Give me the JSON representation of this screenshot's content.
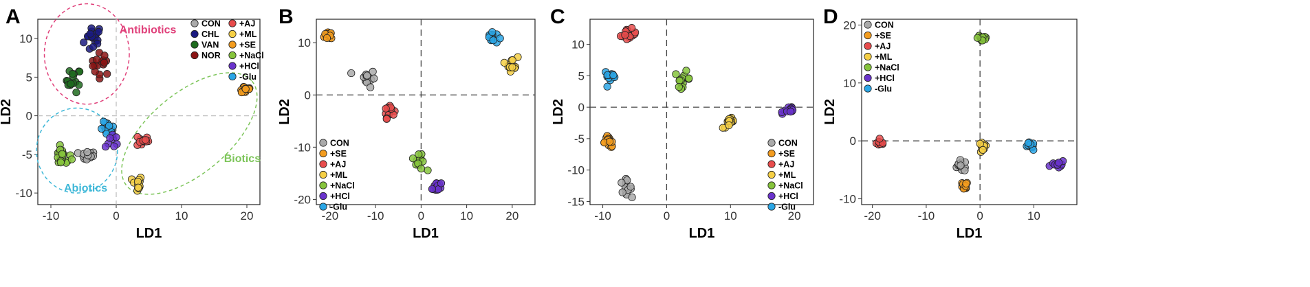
{
  "colors": {
    "CON": "#aaaaaa",
    "CHL": "#1a1a80",
    "VAN": "#1e6b1e",
    "NOR": "#8b1515",
    "+AJ": "#e84c4c",
    "+ML": "#f5cf45",
    "+SE": "#f39c1f",
    "+NaCl": "#86c43c",
    "+HCl": "#6a33cc",
    "-Glu": "#2aa6e6"
  },
  "chart_data": [
    {
      "panel": "A",
      "type": "scatter",
      "xlabel": "LD1",
      "ylabel": "LD2",
      "xlim": [
        -12,
        22
      ],
      "ylim": [
        -11.5,
        12.5
      ],
      "xticks": [
        -10,
        0,
        10,
        20
      ],
      "yticks": [
        10,
        5,
        0,
        -5,
        -10
      ],
      "ref_lines": {
        "x": 0,
        "y": 0,
        "style": "light-gray-dashed"
      },
      "legend_position": "top-right",
      "legend": [
        [
          "CON",
          "CHL",
          "VAN",
          "NOR"
        ],
        [
          "+AJ",
          "+ML",
          "+SE",
          "+NaCl",
          "+HCl",
          "-Glu"
        ]
      ],
      "clusters": [
        {
          "name": "CHL",
          "cx": -3.5,
          "cy": 10,
          "sx": 1.2,
          "sy": 1.6,
          "n": 18
        },
        {
          "name": "NOR",
          "cx": -2.3,
          "cy": 6.7,
          "sx": 1.3,
          "sy": 1.2,
          "n": 16
        },
        {
          "name": "VAN",
          "cx": -6.5,
          "cy": 4.6,
          "sx": 0.9,
          "sy": 1.3,
          "n": 16
        },
        {
          "name": "CON",
          "cx": -4.5,
          "cy": -5.2,
          "sx": 1.1,
          "sy": 0.5,
          "n": 16
        },
        {
          "name": "+NaCl",
          "cx": -8.2,
          "cy": -5.3,
          "sx": 1.1,
          "sy": 1.0,
          "n": 18
        },
        {
          "name": "-Glu",
          "cx": -1.3,
          "cy": -1.8,
          "sx": 0.9,
          "sy": 0.8,
          "n": 16
        },
        {
          "name": "+HCl",
          "cx": -0.6,
          "cy": -3.2,
          "sx": 0.9,
          "sy": 0.9,
          "n": 8
        },
        {
          "name": "+AJ",
          "cx": 4.0,
          "cy": -3.2,
          "sx": 0.8,
          "sy": 0.7,
          "n": 14
        },
        {
          "name": "+ML",
          "cx": 3.2,
          "cy": -8.8,
          "sx": 0.6,
          "sy": 0.9,
          "n": 14
        },
        {
          "name": "+SE",
          "cx": 19.7,
          "cy": 3.4,
          "sx": 0.9,
          "sy": 0.5,
          "n": 14
        }
      ],
      "annotations": [
        {
          "text": "Antibiotics",
          "color": "#e0407a",
          "x": 0.5,
          "y": 10.7,
          "ellipse": {
            "cx": -4.5,
            "cy": 8,
            "rx": 6.5,
            "ry": 6.5
          }
        },
        {
          "text": "Abiotics",
          "color": "#3fb8d8",
          "x": -8,
          "y": -9.8,
          "ellipse": {
            "cx": -6,
            "cy": -4.5,
            "rx": 6.2,
            "ry": 5.5
          }
        },
        {
          "text": "Biotics",
          "color": "#7dc55a",
          "x": 16.5,
          "y": -6,
          "ellipse": {
            "cx": 11.2,
            "cy": -2.3,
            "rx": 12.5,
            "ry": 5.2,
            "angle": -40
          }
        }
      ]
    },
    {
      "panel": "B",
      "type": "scatter",
      "xlabel": "LD1",
      "ylabel": "LD2",
      "xlim": [
        -23,
        25
      ],
      "ylim": [
        -21,
        14.5
      ],
      "xticks": [
        -20,
        -10,
        0,
        10,
        20
      ],
      "yticks": [
        10,
        0,
        -10,
        -20
      ],
      "ref_lines": {
        "x": 0,
        "y": 0,
        "style": "dark-dashed"
      },
      "legend_position": "bottom-left",
      "legend": [
        [
          "CON",
          "+SE",
          "+AJ",
          "+ML",
          "+NaCl",
          "+HCl",
          "-Glu"
        ]
      ],
      "clusters": [
        {
          "name": "+SE",
          "cx": -20,
          "cy": 11.5,
          "sx": 1.0,
          "sy": 0.8,
          "n": 14
        },
        {
          "name": "CON",
          "cx": -12,
          "cy": 3.2,
          "sx": 1.6,
          "sy": 1.4,
          "n": 14
        },
        {
          "name": "+AJ",
          "cx": -7,
          "cy": -2.8,
          "sx": 0.9,
          "sy": 1.3,
          "n": 14
        },
        {
          "name": "+NaCl",
          "cx": -0.5,
          "cy": -13.0,
          "sx": 1.2,
          "sy": 1.2,
          "n": 14
        },
        {
          "name": "+HCl",
          "cx": 3.4,
          "cy": -17.5,
          "sx": 0.8,
          "sy": 1.2,
          "n": 14
        },
        {
          "name": "-Glu",
          "cx": 15.5,
          "cy": 11.0,
          "sx": 1.1,
          "sy": 1.0,
          "n": 14
        },
        {
          "name": "+ML",
          "cx": 20,
          "cy": 6.0,
          "sx": 1.0,
          "sy": 1.2,
          "n": 14
        }
      ]
    },
    {
      "panel": "C",
      "type": "scatter",
      "xlabel": "LD1",
      "ylabel": "LD2",
      "xlim": [
        -12,
        23
      ],
      "ylim": [
        -15.5,
        14
      ],
      "xticks": [
        -10,
        0,
        10,
        20
      ],
      "yticks": [
        10,
        5,
        0,
        -5,
        -10,
        -15
      ],
      "ref_lines": {
        "x": 0,
        "y": 0,
        "style": "dark-dashed"
      },
      "legend_position": "bottom-right",
      "legend": [
        [
          "CON",
          "+SE",
          "+AJ",
          "+ML",
          "+NaCl",
          "+HCl",
          "-Glu"
        ]
      ],
      "clusters": [
        {
          "name": "+AJ",
          "cx": -6,
          "cy": 11.5,
          "sx": 1.0,
          "sy": 0.8,
          "n": 14
        },
        {
          "name": "-Glu",
          "cx": -8.8,
          "cy": 4.9,
          "sx": 0.8,
          "sy": 0.8,
          "n": 14
        },
        {
          "name": "+NaCl",
          "cx": 2.5,
          "cy": 4.5,
          "sx": 1.0,
          "sy": 1.0,
          "n": 14
        },
        {
          "name": "+SE",
          "cx": -9,
          "cy": -5.5,
          "sx": 0.8,
          "sy": 0.8,
          "n": 14
        },
        {
          "name": "CON",
          "cx": -6.5,
          "cy": -12.8,
          "sx": 0.8,
          "sy": 1.0,
          "n": 14
        },
        {
          "name": "+ML",
          "cx": 10,
          "cy": -2.5,
          "sx": 1.0,
          "sy": 0.7,
          "n": 14
        },
        {
          "name": "+HCl",
          "cx": 19,
          "cy": -0.5,
          "sx": 1.0,
          "sy": 0.8,
          "n": 12
        }
      ]
    },
    {
      "panel": "D",
      "type": "scatter",
      "xlabel": "LD1",
      "ylabel": "LD2",
      "xlim": [
        -22,
        18
      ],
      "ylim": [
        -11,
        21
      ],
      "xticks": [
        -20,
        -10,
        0,
        10
      ],
      "yticks": [
        20,
        10,
        0,
        -10
      ],
      "ref_lines": {
        "x": 0,
        "y": 0,
        "style": "dark-dashed"
      },
      "legend_position": "top-left",
      "legend": [
        [
          "CON",
          "+SE",
          "+AJ",
          "+ML",
          "+NaCl",
          "+HCl",
          "-Glu"
        ]
      ],
      "clusters": [
        {
          "name": "+NaCl",
          "cx": 0.5,
          "cy": 17.8,
          "sx": 0.8,
          "sy": 0.7,
          "n": 14
        },
        {
          "name": "+AJ",
          "cx": -18.5,
          "cy": -0.4,
          "sx": 0.6,
          "sy": 0.4,
          "n": 10
        },
        {
          "name": "CON",
          "cx": -3.5,
          "cy": -4.3,
          "sx": 1.2,
          "sy": 0.8,
          "n": 14
        },
        {
          "name": "+SE",
          "cx": -3.0,
          "cy": -7.9,
          "sx": 0.6,
          "sy": 0.7,
          "n": 12
        },
        {
          "name": "+ML",
          "cx": 0.5,
          "cy": -1.2,
          "sx": 0.6,
          "sy": 0.8,
          "n": 12
        },
        {
          "name": "-Glu",
          "cx": 9.3,
          "cy": -1.0,
          "sx": 0.7,
          "sy": 0.6,
          "n": 12
        },
        {
          "name": "+HCl",
          "cx": 14.5,
          "cy": -4.0,
          "sx": 1.0,
          "sy": 0.6,
          "n": 12
        }
      ]
    }
  ]
}
